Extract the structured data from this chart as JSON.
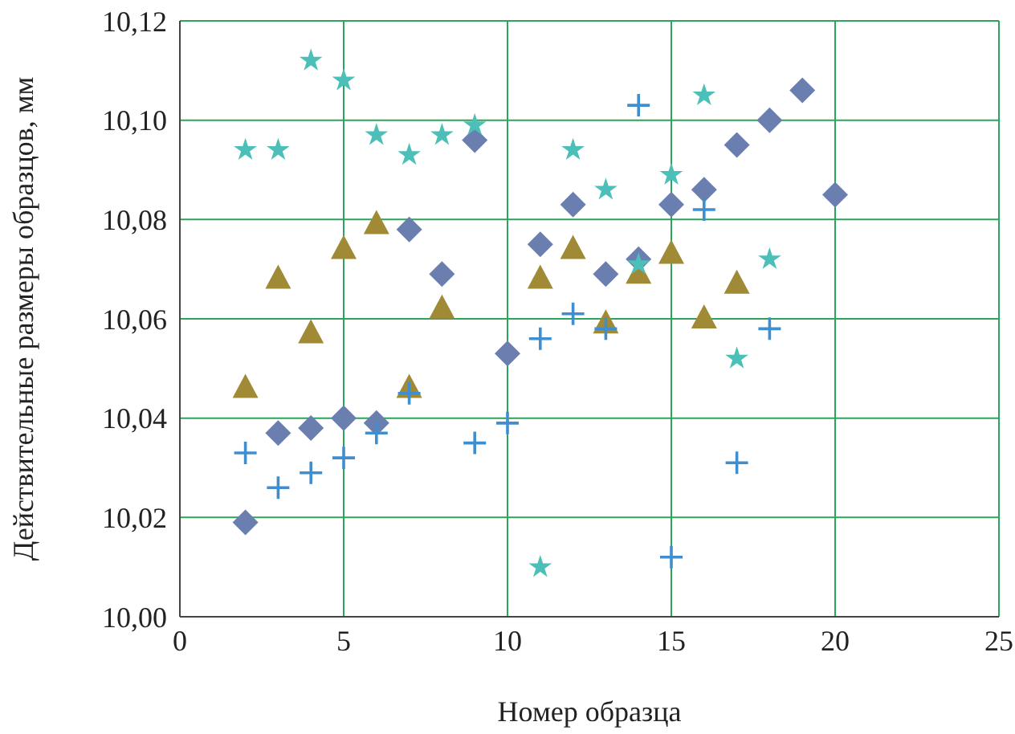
{
  "chart_data": {
    "type": "scatter",
    "xlabel": "Номер образца",
    "ylabel": "Действительные размеры образцов, мм",
    "xlim": [
      0,
      25
    ],
    "xticks": [
      0,
      5,
      10,
      15,
      20,
      25
    ],
    "ylim": [
      10,
      10.12
    ],
    "yticks": [
      {
        "value": 10,
        "label": "10,00"
      },
      {
        "value": 10.02,
        "label": "10,02"
      },
      {
        "value": 10.04,
        "label": "10,04"
      },
      {
        "value": 10.06,
        "label": "10,06"
      },
      {
        "value": 10.08,
        "label": "10,08"
      },
      {
        "value": 10.1,
        "label": "10,10"
      },
      {
        "value": 10.12,
        "label": "10,12"
      }
    ],
    "grid": true,
    "legend": false,
    "series": [
      {
        "marker": "diamond",
        "color": "#6a7fb0",
        "x": [
          2,
          3,
          4,
          5,
          6,
          7,
          8,
          9,
          10,
          11,
          12,
          13,
          14,
          15,
          16,
          17,
          18,
          19,
          20
        ],
        "values": [
          10.019,
          10.037,
          10.038,
          10.04,
          10.039,
          10.078,
          10.069,
          10.096,
          10.053,
          10.075,
          10.083,
          10.069,
          10.072,
          10.083,
          10.086,
          10.095,
          10.1,
          10.106,
          10.085
        ]
      },
      {
        "marker": "triangle",
        "color": "#a08a35",
        "x": [
          2,
          3,
          4,
          5,
          6,
          7,
          8,
          11,
          12,
          13,
          14,
          15,
          16,
          17
        ],
        "values": [
          10.046,
          10.068,
          10.057,
          10.074,
          10.079,
          10.046,
          10.062,
          10.068,
          10.074,
          10.059,
          10.069,
          10.073,
          10.06,
          10.067
        ]
      },
      {
        "marker": "cross",
        "color": "#3f8fd0",
        "x": [
          2,
          3,
          4,
          5,
          6,
          7,
          9,
          10,
          11,
          12,
          13,
          14,
          15,
          16,
          17,
          18
        ],
        "values": [
          10.033,
          10.026,
          10.029,
          10.032,
          10.037,
          10.045,
          10.035,
          10.039,
          10.056,
          10.061,
          10.058,
          10.103,
          10.012,
          10.082,
          10.031,
          10.058
        ]
      },
      {
        "marker": "star",
        "color": "#4cc0b8",
        "x": [
          2,
          3,
          4,
          5,
          6,
          7,
          8,
          9,
          11,
          12,
          13,
          14,
          15,
          16,
          17,
          18
        ],
        "values": [
          10.094,
          10.094,
          10.112,
          10.108,
          10.097,
          10.093,
          10.097,
          10.099,
          10.01,
          10.094,
          10.086,
          10.071,
          10.089,
          10.105,
          10.052,
          10.072
        ]
      }
    ]
  }
}
